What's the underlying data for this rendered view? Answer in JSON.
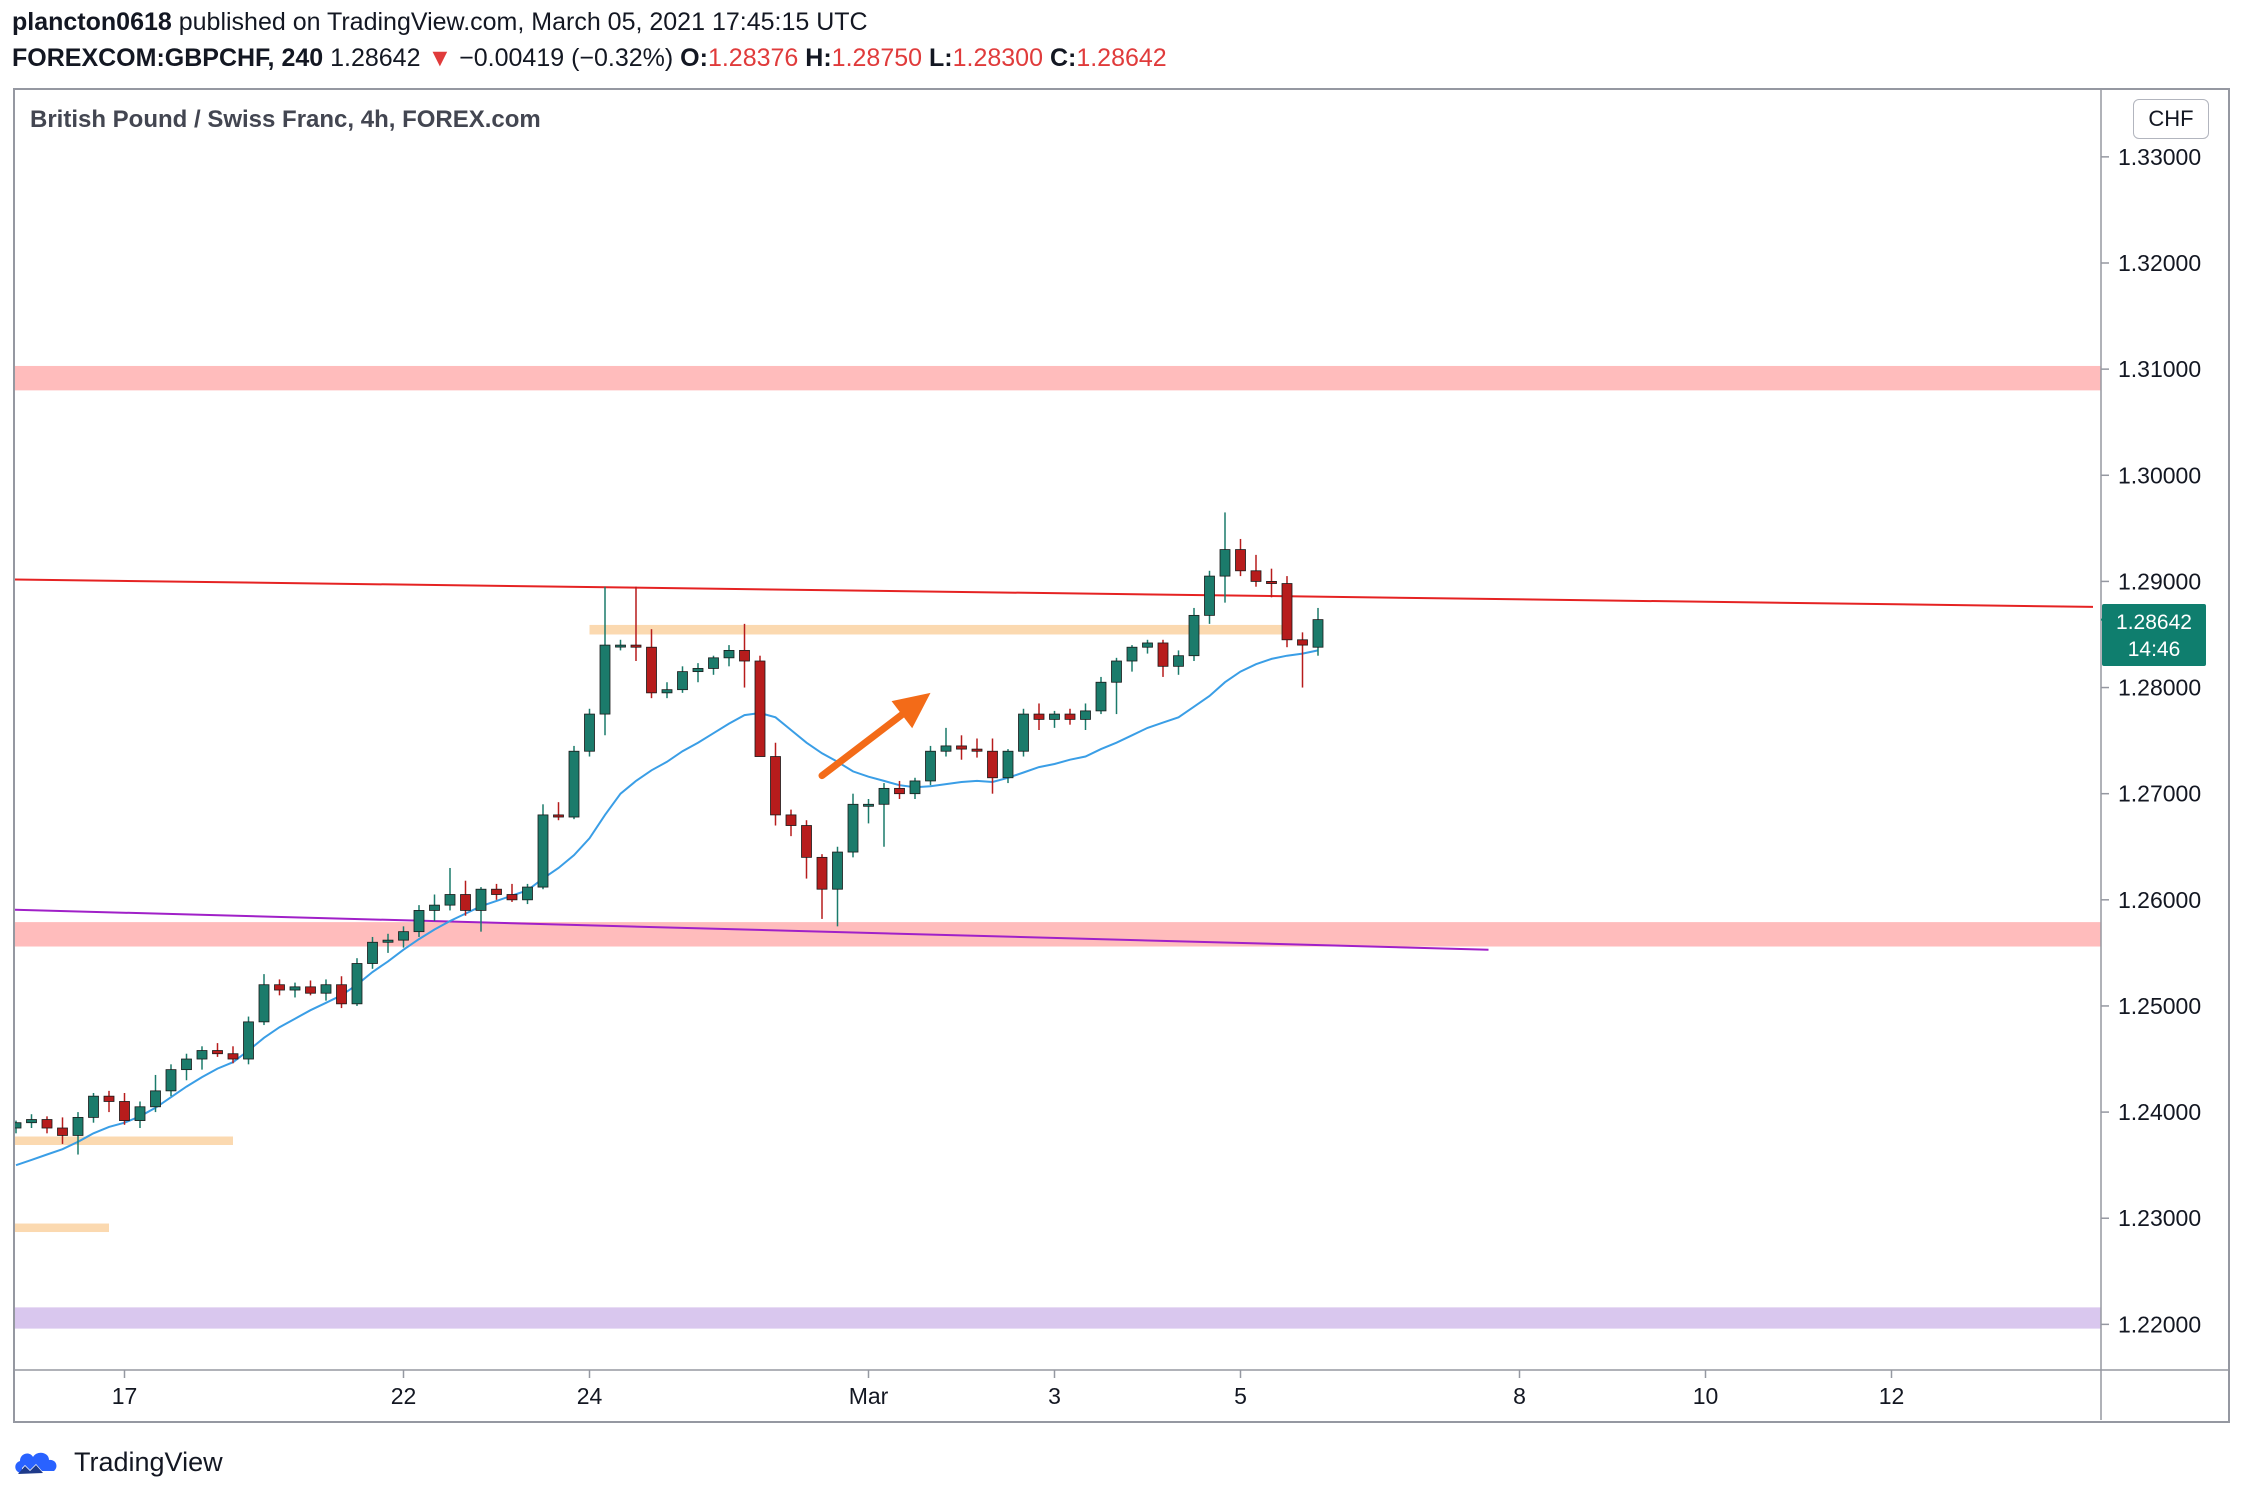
{
  "header": {
    "user": "plancton0618",
    "published": "published on TradingView.com, March 05, 2021 17:45:15 UTC",
    "symbol": "FOREXCOM:GBPCHF, 240",
    "last": "1.28642",
    "change": "−0.00419 (−0.32%)",
    "o_label": "O:",
    "o_value": "1.28376",
    "h_label": "H:",
    "h_value": "1.28750",
    "l_label": "L:",
    "l_value": "1.28300",
    "c_label": "C:",
    "c_value": "1.28642",
    "down_arrow": "▼"
  },
  "chart_title": "British Pound / Swiss Franc, 4h, FOREX.com",
  "currency_button": "CHF",
  "price_tag": {
    "price": "1.28642",
    "countdown": "14:46",
    "color": "#0f7e6e"
  },
  "brand": {
    "name": "TradingView",
    "color": "#2962ff"
  },
  "colors": {
    "up": "#1b7b6b",
    "down": "#b71c1c",
    "ema": "#3a9ee6",
    "resistance_line": "#e52222",
    "support_line": "#a020c8",
    "zone_red": "#ffbcbc",
    "zone_orange": "#fbd9b0",
    "zone_purple": "#d9c7ee",
    "arrow": "#f36b18"
  },
  "chart_data": {
    "type": "candlestick",
    "y_ticks": [
      "1.33000",
      "1.32000",
      "1.31000",
      "1.30000",
      "1.29000",
      "1.28000",
      "1.27000",
      "1.26000",
      "1.25000",
      "1.24000",
      "1.23000",
      "1.22000"
    ],
    "x_ticks": [
      {
        "label": "17",
        "i": 7
      },
      {
        "label": "22",
        "i": 25
      },
      {
        "label": "24",
        "i": 37
      },
      {
        "label": "Mar",
        "i": 55
      },
      {
        "label": "3",
        "i": 67
      },
      {
        "label": "5",
        "i": 79
      },
      {
        "label": "8",
        "i": 97
      },
      {
        "label": "10",
        "i": 109
      },
      {
        "label": "12",
        "i": 121
      }
    ],
    "ylim": [
      1.2157,
      1.3363
    ],
    "x_count_visible": 134,
    "candles": [
      [
        1.2385,
        1.2392,
        1.238,
        1.239
      ],
      [
        1.239,
        1.2398,
        1.2385,
        1.2393
      ],
      [
        1.2393,
        1.2396,
        1.238,
        1.2385
      ],
      [
        1.2385,
        1.2395,
        1.237,
        1.2378
      ],
      [
        1.2378,
        1.24,
        1.236,
        1.2395
      ],
      [
        1.2395,
        1.2418,
        1.239,
        1.2415
      ],
      [
        1.2415,
        1.242,
        1.24,
        1.241
      ],
      [
        1.241,
        1.2418,
        1.2388,
        1.2392
      ],
      [
        1.2392,
        1.241,
        1.2385,
        1.2405
      ],
      [
        1.2405,
        1.2435,
        1.24,
        1.242
      ],
      [
        1.242,
        1.2445,
        1.2415,
        1.244
      ],
      [
        1.244,
        1.2455,
        1.243,
        1.245
      ],
      [
        1.245,
        1.2462,
        1.244,
        1.2458
      ],
      [
        1.2458,
        1.2465,
        1.2452,
        1.2455
      ],
      [
        1.2455,
        1.2462,
        1.2446,
        1.245
      ],
      [
        1.245,
        1.249,
        1.2445,
        1.2485
      ],
      [
        1.2485,
        1.253,
        1.2482,
        1.252
      ],
      [
        1.252,
        1.2525,
        1.251,
        1.2515
      ],
      [
        1.2515,
        1.2522,
        1.2508,
        1.2518
      ],
      [
        1.2518,
        1.2524,
        1.251,
        1.2512
      ],
      [
        1.2512,
        1.2525,
        1.2505,
        1.252
      ],
      [
        1.252,
        1.2528,
        1.2498,
        1.2502
      ],
      [
        1.2502,
        1.2545,
        1.25,
        1.254
      ],
      [
        1.254,
        1.2565,
        1.2535,
        1.256
      ],
      [
        1.256,
        1.2568,
        1.255,
        1.2562
      ],
      [
        1.2562,
        1.2575,
        1.2555,
        1.257
      ],
      [
        1.257,
        1.2595,
        1.2565,
        1.259
      ],
      [
        1.259,
        1.2605,
        1.258,
        1.2595
      ],
      [
        1.2595,
        1.263,
        1.259,
        1.2605
      ],
      [
        1.2605,
        1.2618,
        1.2585,
        1.259
      ],
      [
        1.259,
        1.2612,
        1.257,
        1.261
      ],
      [
        1.261,
        1.2615,
        1.26,
        1.2605
      ],
      [
        1.2605,
        1.2615,
        1.2598,
        1.26
      ],
      [
        1.26,
        1.2615,
        1.2596,
        1.2612
      ],
      [
        1.2612,
        1.269,
        1.261,
        1.268
      ],
      [
        1.268,
        1.2692,
        1.2675,
        1.2678
      ],
      [
        1.2678,
        1.2745,
        1.2676,
        1.274
      ],
      [
        1.274,
        1.278,
        1.2735,
        1.2775
      ],
      [
        1.2775,
        1.2895,
        1.2755,
        1.284
      ],
      [
        1.284,
        1.2845,
        1.2835,
        1.284
      ],
      [
        1.284,
        1.2895,
        1.2825,
        1.2838
      ],
      [
        1.2838,
        1.2855,
        1.279,
        1.2795
      ],
      [
        1.2795,
        1.2805,
        1.279,
        1.2798
      ],
      [
        1.2798,
        1.282,
        1.2795,
        1.2815
      ],
      [
        1.2815,
        1.2823,
        1.2805,
        1.2818
      ],
      [
        1.2818,
        1.283,
        1.2812,
        1.2828
      ],
      [
        1.2828,
        1.284,
        1.282,
        1.2835
      ],
      [
        1.2835,
        1.286,
        1.28,
        1.2825
      ],
      [
        1.2825,
        1.283,
        1.274,
        1.2735
      ],
      [
        1.2735,
        1.2748,
        1.267,
        1.268
      ],
      [
        1.268,
        1.2685,
        1.266,
        1.267
      ],
      [
        1.267,
        1.2675,
        1.262,
        1.264
      ],
      [
        1.264,
        1.2643,
        1.2582,
        1.261
      ],
      [
        1.261,
        1.265,
        1.2575,
        1.2645
      ],
      [
        1.2645,
        1.27,
        1.264,
        1.269
      ],
      [
        1.269,
        1.2695,
        1.2672,
        1.269
      ],
      [
        1.269,
        1.271,
        1.265,
        1.2705
      ],
      [
        1.2705,
        1.2712,
        1.2695,
        1.27
      ],
      [
        1.27,
        1.2715,
        1.2695,
        1.2712
      ],
      [
        1.2712,
        1.2745,
        1.2708,
        1.274
      ],
      [
        1.274,
        1.2762,
        1.2735,
        1.2745
      ],
      [
        1.2745,
        1.2755,
        1.2732,
        1.2742
      ],
      [
        1.2742,
        1.2752,
        1.2734,
        1.274
      ],
      [
        1.274,
        1.2752,
        1.27,
        1.2715
      ],
      [
        1.2715,
        1.2742,
        1.271,
        1.274
      ],
      [
        1.274,
        1.278,
        1.2735,
        1.2775
      ],
      [
        1.2775,
        1.2785,
        1.276,
        1.277
      ],
      [
        1.277,
        1.2778,
        1.2762,
        1.2775
      ],
      [
        1.2775,
        1.278,
        1.2765,
        1.277
      ],
      [
        1.277,
        1.2785,
        1.276,
        1.2778
      ],
      [
        1.2778,
        1.281,
        1.2775,
        1.2805
      ],
      [
        1.2805,
        1.2828,
        1.2775,
        1.2825
      ],
      [
        1.2825,
        1.284,
        1.2815,
        1.2838
      ],
      [
        1.2838,
        1.2845,
        1.2832,
        1.2842
      ],
      [
        1.2842,
        1.2845,
        1.281,
        1.282
      ],
      [
        1.282,
        1.2835,
        1.2812,
        1.283
      ],
      [
        1.283,
        1.2875,
        1.2825,
        1.2868
      ],
      [
        1.2868,
        1.291,
        1.286,
        1.2905
      ],
      [
        1.2905,
        1.2965,
        1.288,
        1.293
      ],
      [
        1.293,
        1.294,
        1.2905,
        1.291
      ],
      [
        1.291,
        1.2925,
        1.2895,
        1.29
      ],
      [
        1.29,
        1.2912,
        1.2885,
        1.2898
      ],
      [
        1.2898,
        1.2905,
        1.2838,
        1.2845
      ],
      [
        1.2845,
        1.2852,
        1.28,
        1.284
      ],
      [
        1.2838,
        1.2875,
        1.283,
        1.2864
      ]
    ],
    "ema": [
      1.235,
      1.2355,
      1.236,
      1.2365,
      1.2372,
      1.238,
      1.2386,
      1.239,
      1.2396,
      1.2404,
      1.2414,
      1.2424,
      1.2433,
      1.2441,
      1.2447,
      1.2458,
      1.247,
      1.248,
      1.2488,
      1.2496,
      1.2503,
      1.251,
      1.252,
      1.2532,
      1.2542,
      1.2553,
      1.2563,
      1.2572,
      1.258,
      1.2587,
      1.2594,
      1.2599,
      1.2604,
      1.2609,
      1.262,
      1.263,
      1.2642,
      1.2658,
      1.268,
      1.27,
      1.2712,
      1.2722,
      1.273,
      1.274,
      1.2748,
      1.2757,
      1.2766,
      1.2774,
      1.2776,
      1.2772,
      1.276,
      1.2748,
      1.2738,
      1.273,
      1.2721,
      1.2716,
      1.2712,
      1.2708,
      1.2706,
      1.2707,
      1.2709,
      1.2711,
      1.2712,
      1.2711,
      1.2715,
      1.272,
      1.2725,
      1.2728,
      1.2732,
      1.2735,
      1.2742,
      1.2748,
      1.2755,
      1.2762,
      1.2767,
      1.2772,
      1.2782,
      1.2792,
      1.2805,
      1.2815,
      1.2822,
      1.2827,
      1.283,
      1.2832,
      1.2835
    ],
    "zones": [
      {
        "kind": "red",
        "y0": 1.308,
        "y1": 1.3103,
        "x_end": "full"
      },
      {
        "kind": "red",
        "y0": 1.2556,
        "y1": 1.2579,
        "x_end": "full"
      },
      {
        "kind": "purple",
        "y0": 1.2196,
        "y1": 1.2216,
        "x_end": "full"
      },
      {
        "kind": "orange",
        "y0": 1.285,
        "y1": 1.2859,
        "i0": 37,
        "i1": 82
      },
      {
        "kind": "orange",
        "y0": 1.2369,
        "y1": 1.2377,
        "i0": -1,
        "i1": 14
      },
      {
        "kind": "orange",
        "y0": 1.2287,
        "y1": 1.2295,
        "i0": -1,
        "i1": 6
      }
    ],
    "lines": [
      {
        "kind": "resistance",
        "i0": -1,
        "y0": 1.2902,
        "i1": 134,
        "y1": 1.2876
      },
      {
        "kind": "support",
        "i0": -1,
        "y0": 1.2591,
        "i1": 95,
        "y1": 1.2553
      }
    ],
    "arrow": {
      "i0": 52,
      "y0": 1.2717,
      "i1": 59,
      "y1": 1.2795
    }
  }
}
